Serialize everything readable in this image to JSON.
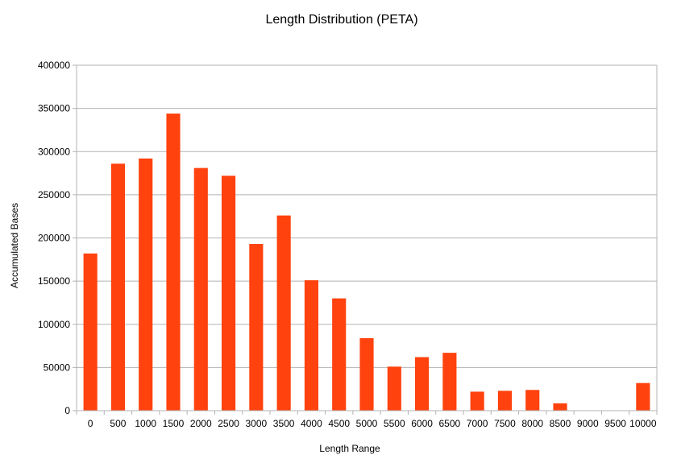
{
  "chart_data": {
    "type": "bar",
    "title": "Length Distribution (PETA)",
    "xlabel": "Length Range",
    "ylabel": "Accumulated Bases",
    "categories": [
      "0",
      "500",
      "1000",
      "1500",
      "2000",
      "2500",
      "3000",
      "3500",
      "4000",
      "4500",
      "5000",
      "5500",
      "6000",
      "6500",
      "7000",
      "7500",
      "8000",
      "8500",
      "9000",
      "9500",
      "10000"
    ],
    "values": [
      182000,
      286000,
      292000,
      344000,
      281000,
      272000,
      193000,
      226000,
      151000,
      130000,
      84000,
      51000,
      62000,
      67000,
      22000,
      23000,
      24000,
      8500,
      0,
      0,
      32000
    ],
    "ylim": [
      0,
      400000
    ],
    "yticks": [
      0,
      50000,
      100000,
      150000,
      200000,
      250000,
      300000,
      350000,
      400000
    ],
    "grid": true,
    "bar_color": "#ff420e",
    "grid_color": "#b3b3b3"
  }
}
